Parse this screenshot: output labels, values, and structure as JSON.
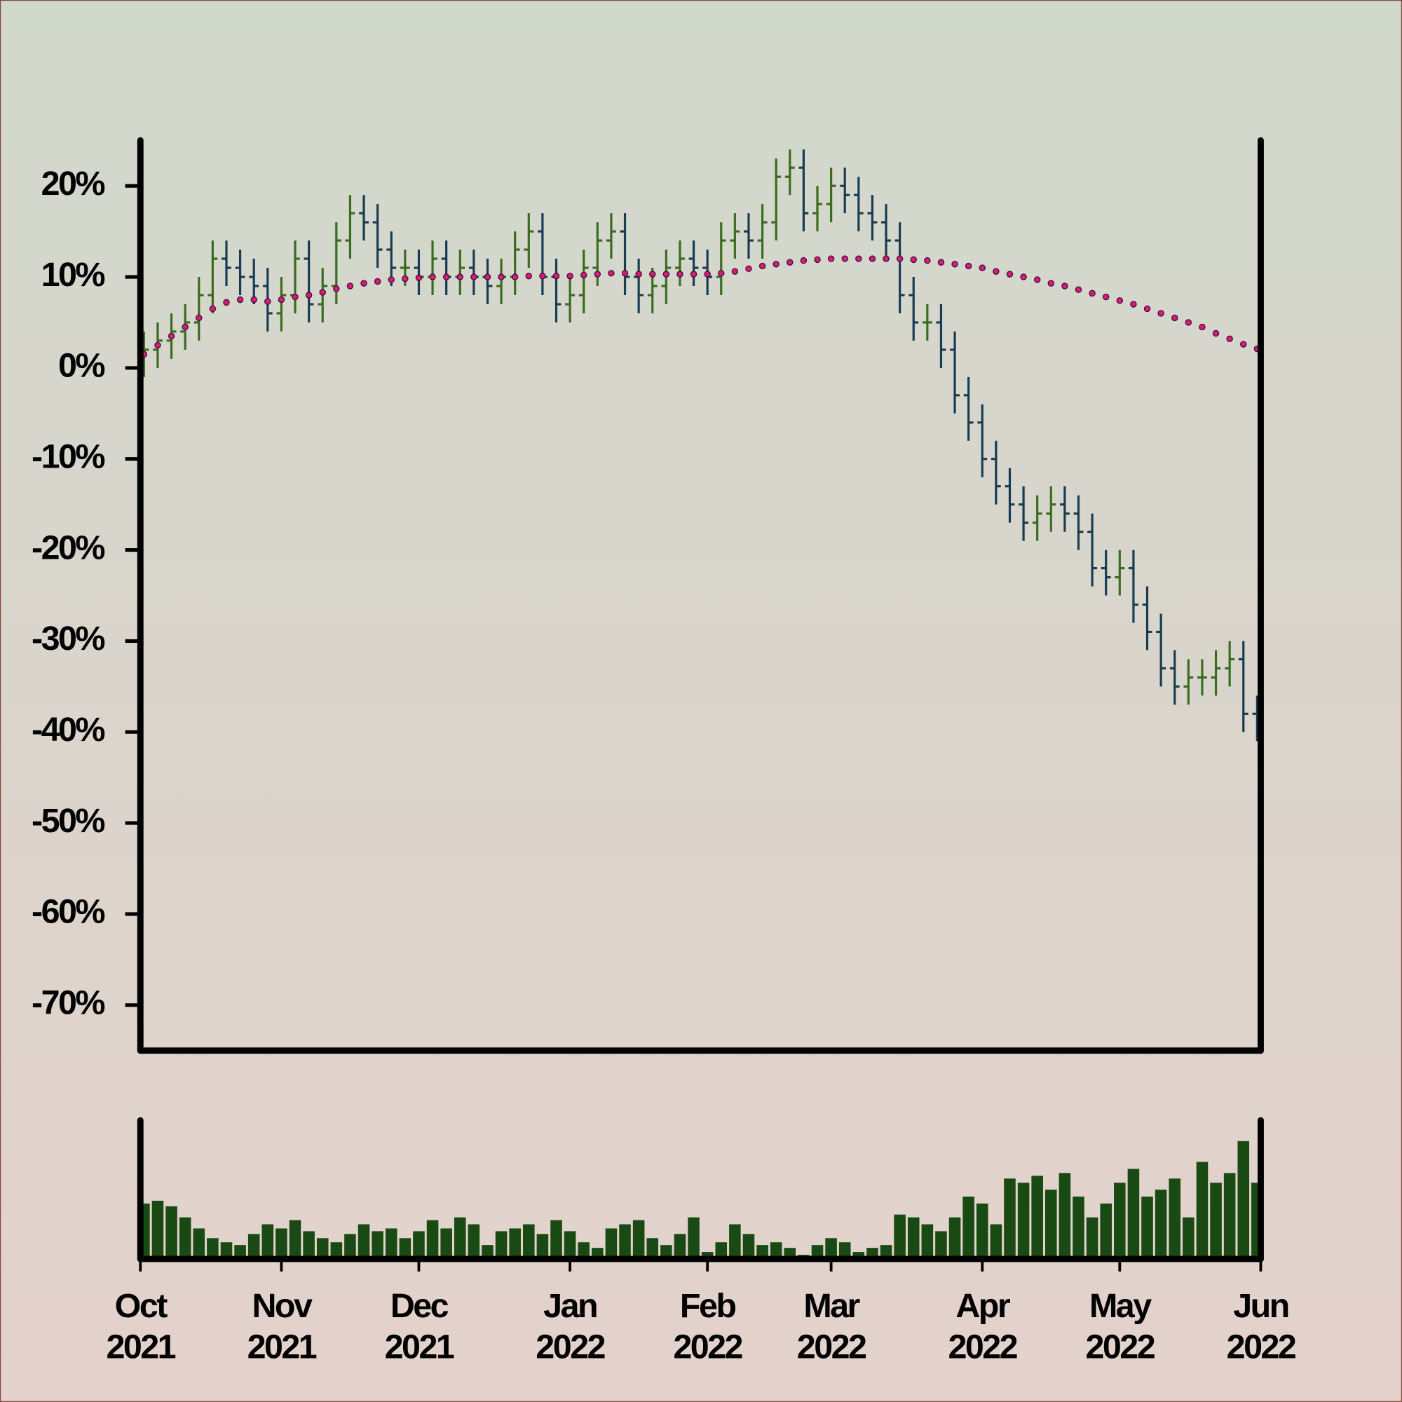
{
  "chart_data": {
    "type": "ohlc",
    "categories": [
      "Oct 2021",
      null,
      null,
      null,
      null,
      null,
      null,
      null,
      null,
      null,
      "Nov 2021",
      null,
      null,
      null,
      null,
      null,
      null,
      null,
      null,
      null,
      "Dec 2021",
      null,
      null,
      null,
      null,
      null,
      null,
      null,
      null,
      null,
      null,
      "Jan 2022",
      null,
      null,
      null,
      null,
      null,
      null,
      null,
      null,
      null,
      "Feb 2022",
      null,
      null,
      null,
      null,
      null,
      null,
      null,
      null,
      "Mar 2022",
      null,
      null,
      null,
      null,
      null,
      null,
      null,
      null,
      null,
      null,
      "Apr 2022",
      null,
      null,
      null,
      null,
      null,
      null,
      null,
      null,
      null,
      "May 2022",
      null,
      null,
      null,
      null,
      null,
      null,
      null,
      null,
      null,
      "Jun 2022"
    ],
    "open": [
      1,
      2,
      3,
      4,
      5,
      8,
      12,
      11,
      10,
      9,
      6,
      8,
      12,
      7,
      9,
      14,
      17,
      16,
      13,
      11,
      11,
      10,
      12,
      10,
      11,
      10,
      9,
      10,
      13,
      15,
      10,
      7,
      8,
      11,
      14,
      15,
      10,
      8,
      9,
      11,
      12,
      11,
      10,
      14,
      15,
      14,
      16,
      21,
      22,
      17,
      18,
      20,
      19,
      17,
      16,
      14,
      8,
      5,
      5,
      2,
      -3,
      -6,
      -10,
      -13,
      -15,
      -17,
      -16,
      -15,
      -16,
      -18,
      -22,
      -23,
      -22,
      -26,
      -29,
      -33,
      -35,
      -34,
      -34,
      -33,
      -32,
      -38
    ],
    "high": [
      4,
      5,
      6,
      7,
      10,
      14,
      14,
      13,
      12,
      11,
      10,
      14,
      14,
      11,
      16,
      19,
      19,
      18,
      15,
      13,
      13,
      14,
      14,
      13,
      13,
      12,
      12,
      15,
      17,
      17,
      12,
      10,
      13,
      16,
      17,
      17,
      12,
      11,
      13,
      14,
      14,
      13,
      16,
      17,
      17,
      18,
      23,
      24,
      24,
      20,
      22,
      22,
      21,
      19,
      18,
      16,
      10,
      7,
      7,
      4,
      -1,
      -4,
      -8,
      -11,
      -13,
      -14,
      -13,
      -13,
      -14,
      -16,
      -20,
      -20,
      -20,
      -24,
      -27,
      -31,
      -32,
      -32,
      -31,
      -30,
      -30,
      -36
    ],
    "low": [
      -1,
      0,
      1,
      2,
      3,
      6,
      9,
      8,
      7,
      4,
      4,
      6,
      5,
      5,
      7,
      12,
      14,
      11,
      9,
      9,
      8,
      8,
      8,
      8,
      8,
      7,
      7,
      8,
      11,
      8,
      5,
      5,
      6,
      9,
      12,
      8,
      6,
      6,
      7,
      9,
      9,
      8,
      8,
      12,
      12,
      12,
      14,
      19,
      15,
      15,
      16,
      17,
      15,
      14,
      12,
      6,
      3,
      3,
      0,
      -5,
      -8,
      -12,
      -15,
      -17,
      -19,
      -19,
      -18,
      -18,
      -20,
      -24,
      -25,
      -25,
      -28,
      -31,
      -35,
      -37,
      -37,
      -36,
      -36,
      -35,
      -40,
      -41
    ],
    "close": [
      2,
      3,
      4,
      5,
      8,
      12,
      11,
      10,
      9,
      6,
      8,
      12,
      7,
      9,
      14,
      17,
      16,
      13,
      11,
      11,
      10,
      12,
      10,
      11,
      10,
      9,
      10,
      13,
      15,
      10,
      7,
      8,
      11,
      14,
      15,
      10,
      8,
      9,
      11,
      12,
      11,
      10,
      14,
      15,
      14,
      16,
      21,
      22,
      17,
      18,
      20,
      19,
      17,
      16,
      14,
      8,
      5,
      5,
      2,
      -3,
      -6,
      -10,
      -13,
      -15,
      -17,
      -16,
      -15,
      -16,
      -18,
      -22,
      -23,
      -22,
      -26,
      -29,
      -33,
      -35,
      -34,
      -34,
      -33,
      -32,
      -38,
      -39
    ],
    "up_color": "#3a6b1f",
    "down_color": "#183c52",
    "ylim": [
      -75,
      25
    ],
    "yticks": [
      {
        "value": 20,
        "label": "20%"
      },
      {
        "value": 10,
        "label": "10%"
      },
      {
        "value": 0,
        "label": "0%"
      },
      {
        "value": -10,
        "label": "-10%"
      },
      {
        "value": -20,
        "label": "-20%"
      },
      {
        "value": -30,
        "label": "-30%"
      },
      {
        "value": -40,
        "label": "-40%"
      },
      {
        "value": -50,
        "label": "-50%"
      },
      {
        "value": -60,
        "label": "-60%"
      },
      {
        "value": -70,
        "label": "-70%"
      }
    ],
    "moving_average": {
      "color": "#d81b7a",
      "values": [
        1.5,
        2.5,
        3.5,
        4.5,
        5.5,
        6.5,
        7.2,
        7.5,
        7.5,
        7.3,
        7.5,
        7.8,
        8,
        8.3,
        8.7,
        9,
        9.3,
        9.5,
        9.7,
        9.8,
        9.9,
        10,
        10,
        10,
        10,
        10,
        10,
        10,
        10.1,
        10.1,
        10.1,
        10.1,
        10.2,
        10.3,
        10.4,
        10.4,
        10.3,
        10.3,
        10.3,
        10.3,
        10.3,
        10.3,
        10.4,
        10.6,
        10.9,
        11.2,
        11.4,
        11.6,
        11.8,
        11.9,
        12,
        12,
        12,
        12,
        12,
        12,
        11.9,
        11.8,
        11.6,
        11.4,
        11.2,
        11,
        10.6,
        10.3,
        10,
        9.7,
        9.3,
        9,
        8.6,
        8.2,
        7.8,
        7.4,
        7,
        6.5,
        6,
        5.5,
        5,
        4.5,
        3.8,
        3.2,
        2.6,
        2.1
      ]
    },
    "volume": {
      "color": "#1a4a14",
      "ylim": [
        0,
        100
      ],
      "values": [
        40,
        42,
        38,
        30,
        22,
        15,
        12,
        10,
        18,
        25,
        22,
        28,
        20,
        15,
        12,
        18,
        25,
        20,
        22,
        15,
        20,
        28,
        22,
        30,
        25,
        10,
        20,
        22,
        25,
        18,
        28,
        20,
        12,
        8,
        22,
        25,
        28,
        15,
        10,
        18,
        30,
        5,
        12,
        25,
        18,
        10,
        12,
        8,
        3,
        10,
        15,
        12,
        5,
        8,
        10,
        32,
        30,
        25,
        20,
        30,
        45,
        40,
        25,
        58,
        55,
        60,
        50,
        62,
        45,
        30,
        40,
        55,
        65,
        45,
        50,
        58,
        30,
        70,
        55,
        62,
        85,
        55
      ]
    }
  }
}
